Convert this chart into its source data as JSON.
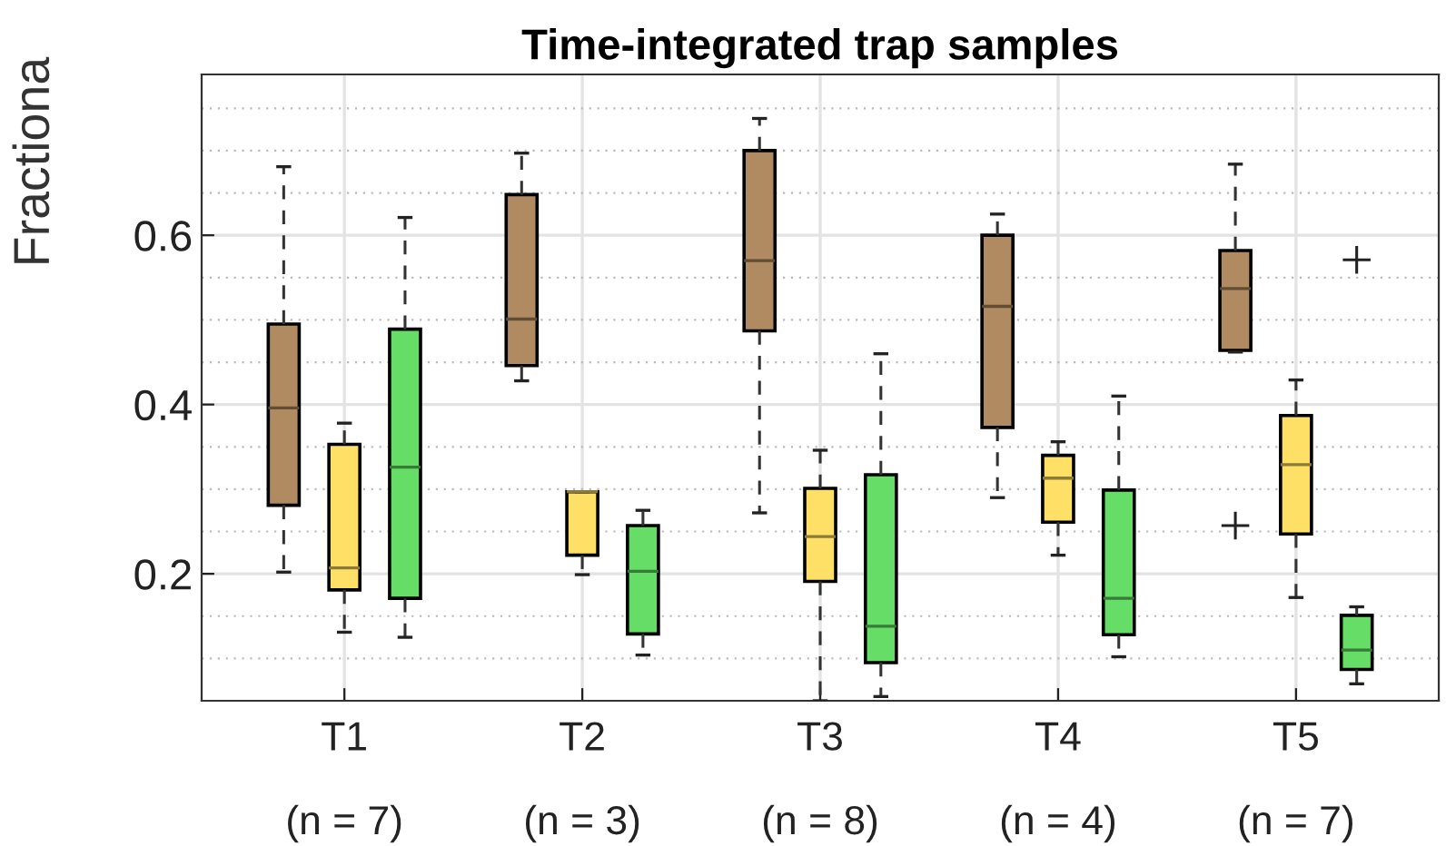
{
  "chart_data": {
    "type": "box",
    "title": "Time-integrated trap samples",
    "ylabel": "Fractiona",
    "categories": [
      "T1\n\n(n = 7)",
      "T2\n\n(n = 3)",
      "T3\n\n(n = 8)",
      "T4\n\n(n = 4)",
      "T5\n\n(n = 7)"
    ],
    "ylim": [
      0.05,
      0.79
    ],
    "yticks": [
      {
        "value": 0.1,
        "label": null
      },
      {
        "value": 0.15,
        "label": null
      },
      0.2,
      {
        "value": 0.25,
        "label": null
      },
      {
        "value": 0.3,
        "label": null
      },
      {
        "value": 0.35,
        "label": null
      },
      0.4,
      {
        "value": 0.45,
        "label": null
      },
      {
        "value": 0.5,
        "label": null
      },
      {
        "value": 0.55,
        "label": null
      },
      0.6,
      {
        "value": 0.65,
        "label": null
      },
      {
        "value": 0.7,
        "label": null
      },
      {
        "value": 0.75,
        "label": null
      }
    ],
    "grid": true,
    "series": [
      {
        "color": "#b08a60",
        "boxes": [
          {
            "low": 0.202,
            "q1": 0.281,
            "median": 0.396,
            "q3": 0.495,
            "high": 0.681
          },
          {
            "low": 0.428,
            "q1": 0.446,
            "median": 0.501,
            "q3": 0.648,
            "high": 0.697
          },
          {
            "low": 0.272,
            "q1": 0.487,
            "median": 0.57,
            "q3": 0.7,
            "high": 0.738
          },
          {
            "low": 0.29,
            "q1": 0.373,
            "median": 0.516,
            "q3": 0.6,
            "high": 0.625
          },
          {
            "low": 0.462,
            "q1": 0.464,
            "median": 0.537,
            "q3": 0.582,
            "high": 0.684,
            "outliers": [
              0.257
            ]
          }
        ]
      },
      {
        "color": "#ffe066",
        "boxes": [
          {
            "low": 0.131,
            "q1": 0.181,
            "median": 0.207,
            "q3": 0.353,
            "high": 0.378
          },
          {
            "low": 0.199,
            "q1": 0.222,
            "median": 0.297,
            "q3": 0.297,
            "high": 0.297
          },
          {
            "low": 0.05,
            "q1": 0.191,
            "median": 0.244,
            "q3": 0.301,
            "high": 0.346
          },
          {
            "low": 0.222,
            "q1": 0.261,
            "median": 0.313,
            "q3": 0.34,
            "high": 0.356
          },
          {
            "low": 0.172,
            "q1": 0.247,
            "median": 0.329,
            "q3": 0.387,
            "high": 0.429
          }
        ]
      },
      {
        "color": "#66dd66",
        "boxes": [
          {
            "low": 0.125,
            "q1": 0.171,
            "median": 0.326,
            "q3": 0.489,
            "high": 0.621
          },
          {
            "low": 0.104,
            "q1": 0.129,
            "median": 0.203,
            "q3": 0.257,
            "high": 0.275
          },
          {
            "low": 0.055,
            "q1": 0.095,
            "median": 0.138,
            "q3": 0.317,
            "high": 0.46
          },
          {
            "low": 0.102,
            "q1": 0.128,
            "median": 0.171,
            "q3": 0.299,
            "high": 0.41
          },
          {
            "low": 0.07,
            "q1": 0.087,
            "median": 0.11,
            "q3": 0.151,
            "high": 0.161,
            "outliers": [
              0.571
            ]
          }
        ]
      }
    ]
  }
}
